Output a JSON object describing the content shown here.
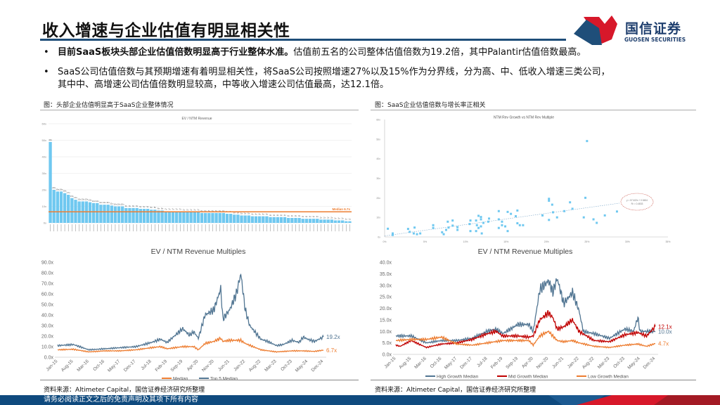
{
  "header": {
    "title": "收入增速与企业估值有明显相关性",
    "logo_cn": "国信证券",
    "logo_en": "GUOSEN SECURITIES"
  },
  "bullets": [
    {
      "bold": "目前SaaS板块头部企业估值倍数明显高于行业整体水准。",
      "text": "估值前五名的公司整体估值倍数为19.2倍，其中Palantir估值倍数最高。"
    },
    {
      "line1": "SaaS公司估值倍数与其预期增速有着明显相关性，将SaaS公司按照增速27%以及15%作为分界线，分为高、中、低收入增速三类公司，",
      "line2": "其中中、高增速公司估值倍数明显较高，中等收入增速公司估值最高，达12.1倍。"
    }
  ],
  "captions": {
    "left": "图：头部企业估值明显高于SaaS企业整体情况",
    "right": "图：SaaS企业估值倍数与增长率正相关"
  },
  "sources": {
    "left": "资料来源：Altimeter Capital，国信证券经济研究所整理",
    "right": "资料来源：Altimeter Capital，国信证券经济研究所整理"
  },
  "footer": {
    "disclaimer": "请务必阅读正文之后的免责声明及其项下所有内容"
  },
  "colors": {
    "brand_blue": "#1f4e79",
    "brand_red": "#d7182a",
    "bar": "#6fc8f0",
    "median_line": "#ed7d31",
    "top5": "#517592",
    "mid": "#c00000",
    "low": "#ed7d31"
  },
  "chart_data": [
    {
      "type": "bar",
      "title": "EV / NTM Revenue",
      "yticks": [
        "0x",
        "10x",
        "20x",
        "30x",
        "40x",
        "50x",
        "60x"
      ],
      "ylim": [
        0,
        60
      ],
      "values": [
        49,
        20,
        19,
        19,
        18,
        17,
        15,
        14,
        13,
        13,
        13,
        12.5,
        12,
        12,
        11,
        11,
        11,
        10.5,
        10,
        10,
        10,
        9,
        9,
        9,
        9,
        8.5,
        8.5,
        8.5,
        8,
        8,
        7.5,
        7.5,
        7,
        7,
        7,
        7,
        7,
        6.5,
        6.5,
        6.5,
        6.5,
        6.5,
        6,
        6,
        6,
        6,
        6,
        6,
        6,
        5.5,
        5.5,
        5,
        5,
        4.5,
        4.5,
        4.5,
        4,
        4,
        4,
        4,
        4,
        3.5,
        3.5,
        3.5,
        3.5,
        3.5,
        3,
        3,
        3,
        3,
        2.5,
        2.5,
        2.5,
        2.5,
        2.5,
        2,
        2,
        2,
        2,
        1.5,
        1.5,
        1.5,
        1,
        1
      ],
      "reference_line": {
        "label": "Median 6.7x",
        "value": 6.7
      },
      "grid": true
    },
    {
      "type": "scatter",
      "title": "NTM Rev Growth vs NTM Rev Multiple",
      "xticks": [
        "0%",
        "5%",
        "10%",
        "15%",
        "20%",
        "25%",
        "30%",
        "35%"
      ],
      "xlim": [
        0,
        35
      ],
      "yticks": [
        "0x",
        "10x",
        "20x",
        "30x",
        "40x",
        "50x",
        "60x"
      ],
      "ylim": [
        0,
        60
      ],
      "points": [
        [
          25,
          49
        ],
        [
          20.3,
          19.5
        ],
        [
          20.3,
          18.5
        ],
        [
          20.7,
          16.5
        ],
        [
          22.9,
          17.7
        ],
        [
          24.8,
          20
        ],
        [
          28.7,
          13
        ],
        [
          27.2,
          11
        ],
        [
          24.6,
          10
        ],
        [
          25.8,
          9
        ],
        [
          26.2,
          7.2
        ],
        [
          23.2,
          14.4
        ],
        [
          22.2,
          13.2
        ],
        [
          20.8,
          12.6
        ],
        [
          19.5,
          11
        ],
        [
          20.3,
          8.7
        ],
        [
          21.3,
          10
        ],
        [
          16.4,
          13.5
        ],
        [
          15.2,
          12.8
        ],
        [
          15.6,
          11.8
        ],
        [
          16.2,
          10.6
        ],
        [
          14.1,
          13.2
        ],
        [
          14.1,
          9
        ],
        [
          14.5,
          7.8
        ],
        [
          14.9,
          5.4
        ],
        [
          14.5,
          6
        ],
        [
          14.1,
          4.6
        ],
        [
          15.2,
          3
        ],
        [
          16.4,
          7
        ],
        [
          16.7,
          6
        ],
        [
          17.1,
          6
        ],
        [
          11.6,
          10.8
        ],
        [
          11.9,
          10.2
        ],
        [
          11.9,
          9
        ],
        [
          11.3,
          8.4
        ],
        [
          10.6,
          8.4
        ],
        [
          10.5,
          6.6
        ],
        [
          11.4,
          6
        ],
        [
          11.9,
          5.4
        ],
        [
          12.2,
          7.2
        ],
        [
          12.8,
          7.8
        ],
        [
          12.9,
          9.4
        ],
        [
          11.6,
          4.6
        ],
        [
          11.3,
          3
        ],
        [
          10.6,
          3
        ],
        [
          12,
          1.8
        ],
        [
          8.4,
          8.4
        ],
        [
          7.8,
          7.8
        ],
        [
          8.4,
          5.8
        ],
        [
          9,
          5
        ],
        [
          9,
          3.6
        ],
        [
          7.9,
          4.8
        ],
        [
          7.6,
          3.6
        ],
        [
          7.1,
          2.4
        ],
        [
          7.3,
          1.4
        ],
        [
          6,
          6
        ],
        [
          6,
          4.6
        ],
        [
          3.7,
          4.8
        ],
        [
          2.9,
          4.1
        ],
        [
          3.1,
          2.6
        ],
        [
          3.6,
          1.8
        ],
        [
          4,
          1.4
        ],
        [
          4.4,
          1.8
        ],
        [
          1,
          1.8
        ],
        [
          1,
          1
        ],
        [
          0.4,
          4.2
        ]
      ],
      "trendline": {
        "slope": 57.622,
        "intercept": 0.5454,
        "equation": "y = 57.622x + 0.5454",
        "r2": "R² = 0.4833"
      }
    },
    {
      "type": "line",
      "title": "EV / NTM Revenue Multiples",
      "yticks": [
        "0.0x",
        "10.0x",
        "20.0x",
        "30.0x",
        "40.0x",
        "50.0x",
        "60.0x",
        "70.0x",
        "80.0x",
        "90.0x"
      ],
      "ylim": [
        0,
        90
      ],
      "xticks": [
        "Jan-15",
        "Aug-15",
        "Mar-16",
        "Oct-16",
        "May-17",
        "Dec-17",
        "Jul-18",
        "Feb-19",
        "Sep-19",
        "Apr-20",
        "Nov-20",
        "Jun-21",
        "Jan-22",
        "Aug-22",
        "Mar-23",
        "Oct-23",
        "May-24",
        "Dec-24"
      ],
      "series": [
        {
          "name": "Median",
          "color": "#ed7d31",
          "end_label": "6.7x",
          "data": [
            [
              "2015-01",
              7
            ],
            [
              "2015-08",
              7.5
            ],
            [
              "2016-03",
              5
            ],
            [
              "2016-10",
              6
            ],
            [
              "2017-05",
              6
            ],
            [
              "2017-12",
              7
            ],
            [
              "2018-07",
              9
            ],
            [
              "2018-11",
              10
            ],
            [
              "2019-02",
              8
            ],
            [
              "2019-09",
              10
            ],
            [
              "2020-02",
              10
            ],
            [
              "2020-04",
              7
            ],
            [
              "2020-07",
              13
            ],
            [
              "2020-11",
              15
            ],
            [
              "2021-02",
              18
            ],
            [
              "2021-03",
              15
            ],
            [
              "2021-06",
              16
            ],
            [
              "2021-11",
              16
            ],
            [
              "2022-01",
              13
            ],
            [
              "2022-08",
              7
            ],
            [
              "2023-03",
              5
            ],
            [
              "2023-10",
              6
            ],
            [
              "2024-03",
              6
            ],
            [
              "2024-08",
              5.5
            ],
            [
              "2024-12",
              6.7
            ]
          ]
        },
        {
          "name": "Top 5 Median",
          "color": "#517592",
          "end_label": "19.2x",
          "data": [
            [
              "2015-01",
              11
            ],
            [
              "2015-08",
              12
            ],
            [
              "2016-03",
              7
            ],
            [
              "2016-10",
              8
            ],
            [
              "2017-05",
              9
            ],
            [
              "2017-12",
              10
            ],
            [
              "2018-07",
              14
            ],
            [
              "2018-11",
              17
            ],
            [
              "2019-02",
              14
            ],
            [
              "2019-09",
              27
            ],
            [
              "2019-12",
              21
            ],
            [
              "2020-02",
              24
            ],
            [
              "2020-04",
              18
            ],
            [
              "2020-07",
              40
            ],
            [
              "2020-11",
              45
            ],
            [
              "2021-02",
              65
            ],
            [
              "2021-03",
              36
            ],
            [
              "2021-06",
              45
            ],
            [
              "2021-09",
              60
            ],
            [
              "2021-11",
              79
            ],
            [
              "2022-01",
              45
            ],
            [
              "2022-03",
              30
            ],
            [
              "2022-08",
              17
            ],
            [
              "2022-11",
              15
            ],
            [
              "2023-03",
              11
            ],
            [
              "2023-06",
              12
            ],
            [
              "2023-10",
              16
            ],
            [
              "2024-01",
              14
            ],
            [
              "2024-03",
              19
            ],
            [
              "2024-05",
              17
            ],
            [
              "2024-08",
              15
            ],
            [
              "2024-12",
              19.2
            ]
          ]
        }
      ]
    },
    {
      "type": "line",
      "title": "EV / NTM Revenue Multiples",
      "yticks": [
        "0.0x",
        "5.0x",
        "10.0x",
        "15.0x",
        "20.0x",
        "25.0x",
        "30.0x",
        "35.0x",
        "40.0x"
      ],
      "ylim": [
        0,
        40
      ],
      "xticks": [
        "Jan-15",
        "Aug-15",
        "Mar-16",
        "Oct-16",
        "May-17",
        "Dec-17",
        "Jul-18",
        "Feb-19",
        "Sep-19",
        "Apr-20",
        "Nov-20",
        "Jun-21",
        "Jan-22",
        "Aug-22",
        "Mar-23",
        "Oct-23",
        "May-24",
        "Dec-24"
      ],
      "series": [
        {
          "name": "High Growth Median",
          "color": "#517592",
          "end_label": "10.0x",
          "data": [
            [
              "2015-01",
              8
            ],
            [
              "2015-08",
              8
            ],
            [
              "2016-03",
              5
            ],
            [
              "2016-10",
              6
            ],
            [
              "2017-05",
              6
            ],
            [
              "2017-12",
              7
            ],
            [
              "2018-07",
              10
            ],
            [
              "2018-11",
              11
            ],
            [
              "2019-02",
              9
            ],
            [
              "2019-09",
              13
            ],
            [
              "2020-02",
              13
            ],
            [
              "2020-04",
              10
            ],
            [
              "2020-07",
              28
            ],
            [
              "2020-11",
              32
            ],
            [
              "2021-01",
              27
            ],
            [
              "2021-03",
              33
            ],
            [
              "2021-06",
              22
            ],
            [
              "2021-10",
              27
            ],
            [
              "2022-01",
              19
            ],
            [
              "2022-03",
              10
            ],
            [
              "2022-08",
              9
            ],
            [
              "2023-03",
              7
            ],
            [
              "2023-10",
              11
            ],
            [
              "2024-02",
              10
            ],
            [
              "2024-04",
              16
            ],
            [
              "2024-05",
              10
            ],
            [
              "2024-08",
              10
            ],
            [
              "2024-12",
              10
            ]
          ]
        },
        {
          "name": "Mid Growth Median",
          "color": "#c00000",
          "end_label": "12.1x",
          "data": [
            [
              "2015-01",
              4
            ],
            [
              "2015-03",
              3.5
            ],
            [
              "2015-08",
              6
            ],
            [
              "2016-03",
              3
            ],
            [
              "2016-10",
              4.5
            ],
            [
              "2017-05",
              5
            ],
            [
              "2017-12",
              6.5
            ],
            [
              "2018-07",
              9
            ],
            [
              "2018-11",
              10
            ],
            [
              "2019-02",
              8
            ],
            [
              "2019-09",
              8
            ],
            [
              "2020-02",
              7.5
            ],
            [
              "2020-04",
              8
            ],
            [
              "2020-07",
              15
            ],
            [
              "2020-11",
              18
            ],
            [
              "2021-01",
              16
            ],
            [
              "2021-03",
              11
            ],
            [
              "2021-06",
              12
            ],
            [
              "2021-10",
              15
            ],
            [
              "2022-01",
              10
            ],
            [
              "2022-08",
              6
            ],
            [
              "2023-03",
              5.5
            ],
            [
              "2023-10",
              8.5
            ],
            [
              "2024-04",
              9.5
            ],
            [
              "2024-08",
              8
            ],
            [
              "2024-12",
              12.1
            ]
          ]
        },
        {
          "name": "Low Growth Median",
          "color": "#ed7d31",
          "end_label": "4.7x",
          "data": [
            [
              "2015-01",
              6
            ],
            [
              "2015-08",
              6.5
            ],
            [
              "2016-03",
              6.5
            ],
            [
              "2016-10",
              7.5
            ],
            [
              "2017-05",
              4.5
            ],
            [
              "2017-12",
              4
            ],
            [
              "2018-07",
              5
            ],
            [
              "2019-02",
              6
            ],
            [
              "2019-09",
              6
            ],
            [
              "2020-02",
              6
            ],
            [
              "2020-04",
              4
            ],
            [
              "2020-07",
              8
            ],
            [
              "2020-11",
              10
            ],
            [
              "2021-03",
              6
            ],
            [
              "2021-06",
              5.5
            ],
            [
              "2021-10",
              6
            ],
            [
              "2022-01",
              5
            ],
            [
              "2022-08",
              3.5
            ],
            [
              "2023-03",
              3
            ],
            [
              "2023-10",
              4
            ],
            [
              "2024-04",
              4.5
            ],
            [
              "2024-08",
              3.5
            ],
            [
              "2024-12",
              4.7
            ]
          ]
        }
      ]
    }
  ]
}
